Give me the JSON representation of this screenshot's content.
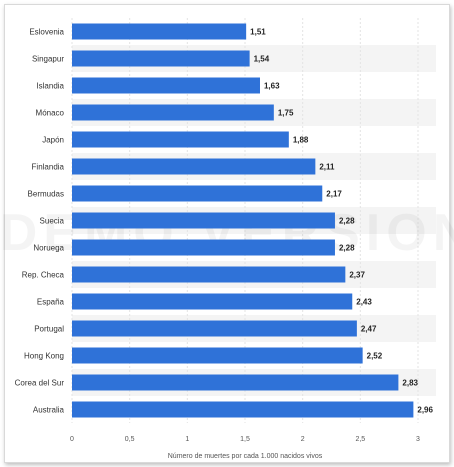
{
  "chart_data": {
    "type": "bar",
    "orientation": "horizontal",
    "categories": [
      "Eslovenia",
      "Singapur",
      "Islandia",
      "Mónaco",
      "Japón",
      "Finlandia",
      "Bermudas",
      "Suecia",
      "Noruega",
      "Rep. Checa",
      "España",
      "Portugal",
      "Hong Kong",
      "Corea del Sur",
      "Australia"
    ],
    "values": [
      1.51,
      1.54,
      1.63,
      1.75,
      1.88,
      2.11,
      2.17,
      2.28,
      2.28,
      2.37,
      2.43,
      2.47,
      2.52,
      2.83,
      2.96
    ],
    "value_labels": [
      "1,51",
      "1,54",
      "1,63",
      "1,75",
      "1,88",
      "2,11",
      "2,17",
      "2,28",
      "2,28",
      "2,37",
      "2,43",
      "2,47",
      "2,52",
      "2,83",
      "2,96"
    ],
    "xlabel": "Número de muertes por cada 1.000 nacidos vivos",
    "xlim": [
      0,
      3
    ],
    "xticks": [
      0,
      0.5,
      1,
      1.5,
      2,
      2.5,
      3
    ],
    "xtick_labels": [
      "0",
      "0,5",
      "1",
      "1,5",
      "2",
      "2,5",
      "3"
    ],
    "grid": true,
    "bar_color": "#2f72d8",
    "watermark": "DEMO VERSION"
  }
}
